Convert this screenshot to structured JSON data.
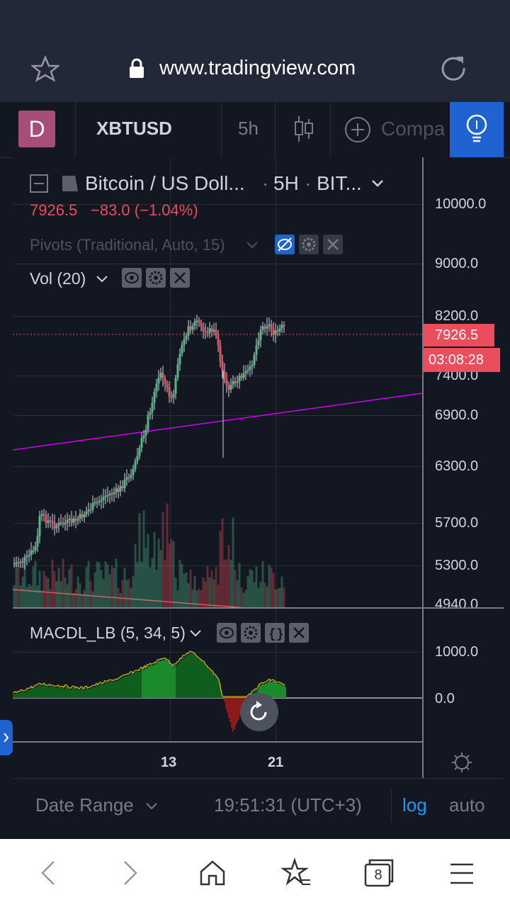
{
  "browser": {
    "url": "www.tradingview.com"
  },
  "toolbar": {
    "avatar_letter": "D",
    "symbol": "XBTUSD",
    "interval": "5h",
    "compare_label": "Compa"
  },
  "legend": {
    "title": "Bitcoin / US Doll...",
    "interval": "5H",
    "exchange": "BIT...",
    "last_price": "7926.5",
    "change": "−83.0 (−1.04%)",
    "pivots_label": "Pivots (Traditional, Auto, 15)",
    "vol_label": "Vol (20)",
    "macd_label": "MACDL_LB (5, 34, 5)"
  },
  "price_axis": {
    "ticks": [
      "10000.0",
      "9000.0",
      "8200.0",
      "7400.0",
      "6900.0",
      "6300.0",
      "5700.0",
      "5300.0",
      "4940.0"
    ],
    "last_price_tag": "7926.5",
    "countdown_tag": "03:08:28"
  },
  "macd_axis": {
    "ticks": [
      "1000.0",
      "0.0"
    ]
  },
  "time_axis": {
    "ticks": [
      "13",
      "21"
    ]
  },
  "footer": {
    "date_range": "Date Range",
    "clock": "19:51:31 (UTC+3)",
    "log": "log",
    "auto": "auto"
  },
  "nav": {
    "tabs_count": "8"
  },
  "colors": {
    "up": "#53b987",
    "down": "#eb4d5c",
    "accent": "#2196f3",
    "trendline": "#d500f9",
    "background": "#131722"
  }
}
